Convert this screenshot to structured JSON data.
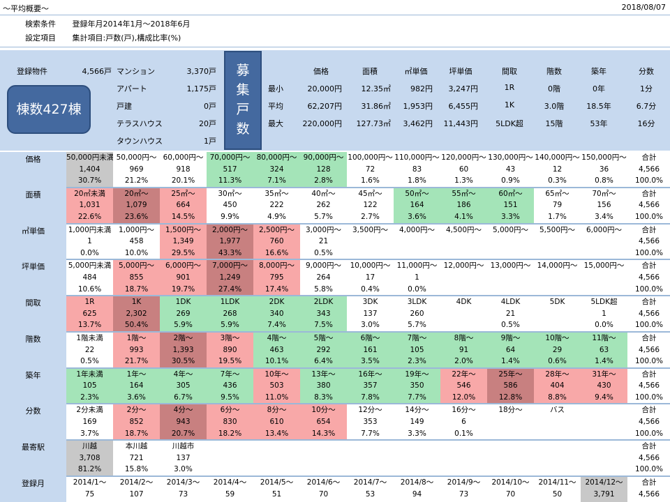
{
  "header": {
    "title": "～平均概要～",
    "date": "2018/08/07"
  },
  "conditions": [
    {
      "key": "検索条件",
      "value": "登録年月2014年1月～2018年6月"
    },
    {
      "key": "設定項目",
      "value": "集計項目:戸数(戸),構成比率(%)"
    }
  ],
  "summary": {
    "registered_label": "登録物件",
    "registered_count": "4,566戸",
    "types": [
      {
        "name": "マンション",
        "count": "3,370戸"
      },
      {
        "name": "アパート",
        "count": "1,175戸"
      },
      {
        "name": "戸建",
        "count": "0戸"
      },
      {
        "name": "テラスハウス",
        "count": "20戸"
      },
      {
        "name": "タウンハウス",
        "count": "1戸"
      }
    ],
    "buildings_button": "棟数427棟",
    "recruit_label": "募集戸数",
    "stat_headers": [
      "価格",
      "面積",
      "㎡単価",
      "坪単価",
      "間取",
      "階数",
      "築年",
      "分数"
    ],
    "stat_rows": [
      {
        "label": "最小",
        "values": [
          "20,000円",
          "12.35㎡",
          "982円",
          "3,247円",
          "1R",
          "0階",
          "0年",
          "1分"
        ]
      },
      {
        "label": "平均",
        "values": [
          "62,207円",
          "31.86㎡",
          "1,953円",
          "6,455円",
          "1K",
          "3.0階",
          "18.5年",
          "6.7分"
        ]
      },
      {
        "label": "最大",
        "values": [
          "220,000円",
          "127.73㎡",
          "3,462円",
          "11,443円",
          "5LDK超",
          "15階",
          "53年",
          "16分"
        ]
      }
    ]
  },
  "total_label": "合計",
  "total_count": "4,566",
  "total_pct": "100.0%",
  "rows": [
    {
      "label": "価格",
      "cells": [
        {
          "h": "50,000円未満",
          "n": "1,404",
          "p": "30.7%",
          "c": "gray"
        },
        {
          "h": "50,000円～",
          "n": "969",
          "p": "21.2%",
          "c": ""
        },
        {
          "h": "60,000円～",
          "n": "918",
          "p": "20.1%",
          "c": ""
        },
        {
          "h": "70,000円～",
          "n": "517",
          "p": "11.3%",
          "c": "green"
        },
        {
          "h": "80,000円～",
          "n": "324",
          "p": "7.1%",
          "c": "green"
        },
        {
          "h": "90,000円～",
          "n": "128",
          "p": "2.8%",
          "c": "green"
        },
        {
          "h": "100,000円～",
          "n": "72",
          "p": "1.6%",
          "c": ""
        },
        {
          "h": "110,000円～",
          "n": "83",
          "p": "1.8%",
          "c": ""
        },
        {
          "h": "120,000円～",
          "n": "60",
          "p": "1.3%",
          "c": ""
        },
        {
          "h": "130,000円～",
          "n": "43",
          "p": "0.9%",
          "c": ""
        },
        {
          "h": "140,000円～",
          "n": "12",
          "p": "0.3%",
          "c": ""
        },
        {
          "h": "150,000円～",
          "n": "36",
          "p": "0.8%",
          "c": ""
        }
      ]
    },
    {
      "label": "面積",
      "cells": [
        {
          "h": "20㎡未満",
          "n": "1,031",
          "p": "22.6%",
          "c": "pink"
        },
        {
          "h": "20㎡～",
          "n": "1,079",
          "p": "23.6%",
          "c": "red"
        },
        {
          "h": "25㎡～",
          "n": "664",
          "p": "14.5%",
          "c": "pink"
        },
        {
          "h": "30㎡～",
          "n": "450",
          "p": "9.9%",
          "c": ""
        },
        {
          "h": "35㎡～",
          "n": "222",
          "p": "4.9%",
          "c": ""
        },
        {
          "h": "40㎡～",
          "n": "262",
          "p": "5.7%",
          "c": ""
        },
        {
          "h": "45㎡～",
          "n": "122",
          "p": "2.7%",
          "c": ""
        },
        {
          "h": "50㎡～",
          "n": "164",
          "p": "3.6%",
          "c": "green"
        },
        {
          "h": "55㎡～",
          "n": "186",
          "p": "4.1%",
          "c": "green"
        },
        {
          "h": "60㎡～",
          "n": "151",
          "p": "3.3%",
          "c": "green"
        },
        {
          "h": "65㎡～",
          "n": "79",
          "p": "1.7%",
          "c": ""
        },
        {
          "h": "70㎡～",
          "n": "156",
          "p": "3.4%",
          "c": ""
        }
      ]
    },
    {
      "label": "㎡単価",
      "cells": [
        {
          "h": "1,000円未満",
          "n": "1",
          "p": "0.0%",
          "c": ""
        },
        {
          "h": "1,000円～",
          "n": "458",
          "p": "10.0%",
          "c": ""
        },
        {
          "h": "1,500円～",
          "n": "1,349",
          "p": "29.5%",
          "c": "pink"
        },
        {
          "h": "2,000円～",
          "n": "1,977",
          "p": "43.3%",
          "c": "red"
        },
        {
          "h": "2,500円～",
          "n": "760",
          "p": "16.6%",
          "c": "pink"
        },
        {
          "h": "3,000円～",
          "n": "21",
          "p": "0.5%",
          "c": ""
        },
        {
          "h": "3,500円～",
          "n": "",
          "p": "",
          "c": ""
        },
        {
          "h": "4,000円～",
          "n": "",
          "p": "",
          "c": ""
        },
        {
          "h": "4,500円～",
          "n": "",
          "p": "",
          "c": ""
        },
        {
          "h": "5,000円～",
          "n": "",
          "p": "",
          "c": ""
        },
        {
          "h": "5,500円～",
          "n": "",
          "p": "",
          "c": ""
        },
        {
          "h": "6,000円～",
          "n": "",
          "p": "",
          "c": ""
        }
      ]
    },
    {
      "label": "坪単価",
      "cells": [
        {
          "h": "5,000円未満",
          "n": "484",
          "p": "10.6%",
          "c": ""
        },
        {
          "h": "5,000円～",
          "n": "855",
          "p": "18.7%",
          "c": "pink"
        },
        {
          "h": "6,000円～",
          "n": "901",
          "p": "19.7%",
          "c": "pink"
        },
        {
          "h": "7,000円～",
          "n": "1,249",
          "p": "27.4%",
          "c": "red"
        },
        {
          "h": "8,000円～",
          "n": "795",
          "p": "17.4%",
          "c": "pink"
        },
        {
          "h": "9,000円～",
          "n": "264",
          "p": "5.8%",
          "c": ""
        },
        {
          "h": "10,000円～",
          "n": "17",
          "p": "0.4%",
          "c": ""
        },
        {
          "h": "11,000円～",
          "n": "1",
          "p": "0.0%",
          "c": ""
        },
        {
          "h": "12,000円～",
          "n": "",
          "p": "",
          "c": ""
        },
        {
          "h": "13,000円～",
          "n": "",
          "p": "",
          "c": ""
        },
        {
          "h": "14,000円～",
          "n": "",
          "p": "",
          "c": ""
        },
        {
          "h": "15,000円～",
          "n": "",
          "p": "",
          "c": ""
        }
      ]
    },
    {
      "label": "間取",
      "cells": [
        {
          "h": "1R",
          "n": "625",
          "p": "13.7%",
          "c": "pink"
        },
        {
          "h": "1K",
          "n": "2,302",
          "p": "50.4%",
          "c": "red"
        },
        {
          "h": "1DK",
          "n": "269",
          "p": "5.9%",
          "c": "green"
        },
        {
          "h": "1LDK",
          "n": "268",
          "p": "5.9%",
          "c": "green"
        },
        {
          "h": "2DK",
          "n": "340",
          "p": "7.4%",
          "c": "green"
        },
        {
          "h": "2LDK",
          "n": "343",
          "p": "7.5%",
          "c": "green"
        },
        {
          "h": "3DK",
          "n": "137",
          "p": "3.0%",
          "c": ""
        },
        {
          "h": "3LDK",
          "n": "260",
          "p": "5.7%",
          "c": ""
        },
        {
          "h": "4DK",
          "n": "",
          "p": "",
          "c": ""
        },
        {
          "h": "4LDK",
          "n": "21",
          "p": "0.5%",
          "c": ""
        },
        {
          "h": "5DK",
          "n": "",
          "p": "",
          "c": ""
        },
        {
          "h": "5LDK超",
          "n": "1",
          "p": "0.0%",
          "c": ""
        }
      ]
    },
    {
      "label": "階数",
      "cells": [
        {
          "h": "1階未満",
          "n": "22",
          "p": "0.5%",
          "c": ""
        },
        {
          "h": "1階～",
          "n": "993",
          "p": "21.7%",
          "c": "pink"
        },
        {
          "h": "2階～",
          "n": "1,393",
          "p": "30.5%",
          "c": "red"
        },
        {
          "h": "3階～",
          "n": "890",
          "p": "19.5%",
          "c": "pink"
        },
        {
          "h": "4階～",
          "n": "463",
          "p": "10.1%",
          "c": "green"
        },
        {
          "h": "5階～",
          "n": "292",
          "p": "6.4%",
          "c": "green"
        },
        {
          "h": "6階～",
          "n": "161",
          "p": "3.5%",
          "c": "green"
        },
        {
          "h": "7階～",
          "n": "105",
          "p": "2.3%",
          "c": "green"
        },
        {
          "h": "8階～",
          "n": "91",
          "p": "2.0%",
          "c": "green"
        },
        {
          "h": "9階～",
          "n": "64",
          "p": "1.4%",
          "c": "green"
        },
        {
          "h": "10階～",
          "n": "29",
          "p": "0.6%",
          "c": "green"
        },
        {
          "h": "11階～",
          "n": "63",
          "p": "1.4%",
          "c": "green"
        }
      ]
    },
    {
      "label": "築年",
      "cells": [
        {
          "h": "1年未満",
          "n": "105",
          "p": "2.3%",
          "c": "green"
        },
        {
          "h": "1年～",
          "n": "164",
          "p": "3.6%",
          "c": "green"
        },
        {
          "h": "4年～",
          "n": "305",
          "p": "6.7%",
          "c": "green"
        },
        {
          "h": "7年～",
          "n": "436",
          "p": "9.5%",
          "c": "green"
        },
        {
          "h": "10年～",
          "n": "503",
          "p": "11.0%",
          "c": "pink"
        },
        {
          "h": "13年～",
          "n": "380",
          "p": "8.3%",
          "c": "green"
        },
        {
          "h": "16年～",
          "n": "357",
          "p": "7.8%",
          "c": "green"
        },
        {
          "h": "19年～",
          "n": "350",
          "p": "7.7%",
          "c": "green"
        },
        {
          "h": "22年～",
          "n": "546",
          "p": "12.0%",
          "c": "pink"
        },
        {
          "h": "25年～",
          "n": "586",
          "p": "12.8%",
          "c": "red"
        },
        {
          "h": "28年～",
          "n": "404",
          "p": "8.8%",
          "c": "pink"
        },
        {
          "h": "31年～",
          "n": "430",
          "p": "9.4%",
          "c": "pink"
        }
      ]
    },
    {
      "label": "分数",
      "cells": [
        {
          "h": "2分未満",
          "n": "169",
          "p": "3.7%",
          "c": ""
        },
        {
          "h": "2分～",
          "n": "852",
          "p": "18.7%",
          "c": "pink"
        },
        {
          "h": "4分～",
          "n": "943",
          "p": "20.7%",
          "c": "red"
        },
        {
          "h": "6分～",
          "n": "830",
          "p": "18.2%",
          "c": "pink"
        },
        {
          "h": "8分～",
          "n": "610",
          "p": "13.4%",
          "c": "pink"
        },
        {
          "h": "10分～",
          "n": "654",
          "p": "14.3%",
          "c": "pink"
        },
        {
          "h": "12分～",
          "n": "353",
          "p": "7.7%",
          "c": ""
        },
        {
          "h": "14分～",
          "n": "149",
          "p": "3.3%",
          "c": ""
        },
        {
          "h": "16分～",
          "n": "6",
          "p": "0.1%",
          "c": ""
        },
        {
          "h": "18分～",
          "n": "",
          "p": "",
          "c": ""
        },
        {
          "h": "バス",
          "n": "",
          "p": "",
          "c": ""
        },
        {
          "h": "",
          "n": "",
          "p": "",
          "c": ""
        }
      ]
    },
    {
      "label": "最寄駅",
      "cells": [
        {
          "h": "川越",
          "n": "3,708",
          "p": "81.2%",
          "c": "gray"
        },
        {
          "h": "本川越",
          "n": "721",
          "p": "15.8%",
          "c": ""
        },
        {
          "h": "川越市",
          "n": "137",
          "p": "3.0%",
          "c": ""
        },
        {
          "h": "",
          "n": "",
          "p": "",
          "c": ""
        },
        {
          "h": "",
          "n": "",
          "p": "",
          "c": ""
        },
        {
          "h": "",
          "n": "",
          "p": "",
          "c": ""
        },
        {
          "h": "",
          "n": "",
          "p": "",
          "c": ""
        },
        {
          "h": "",
          "n": "",
          "p": "",
          "c": ""
        },
        {
          "h": "",
          "n": "",
          "p": "",
          "c": ""
        },
        {
          "h": "",
          "n": "",
          "p": "",
          "c": ""
        },
        {
          "h": "",
          "n": "",
          "p": "",
          "c": ""
        },
        {
          "h": "",
          "n": "",
          "p": "",
          "c": ""
        }
      ]
    },
    {
      "label": "登録月",
      "cells": [
        {
          "h": "2014/1～",
          "n": "75",
          "p": "1.6%",
          "c": ""
        },
        {
          "h": "2014/2～",
          "n": "107",
          "p": "2.3%",
          "c": ""
        },
        {
          "h": "2014/3～",
          "n": "73",
          "p": "1.6%",
          "c": ""
        },
        {
          "h": "2014/4～",
          "n": "59",
          "p": "1.3%",
          "c": ""
        },
        {
          "h": "2014/5～",
          "n": "51",
          "p": "1.1%",
          "c": ""
        },
        {
          "h": "2014/6～",
          "n": "70",
          "p": "1.5%",
          "c": ""
        },
        {
          "h": "2014/7～",
          "n": "53",
          "p": "1.2%",
          "c": ""
        },
        {
          "h": "2014/8～",
          "n": "94",
          "p": "2.1%",
          "c": ""
        },
        {
          "h": "2014/9～",
          "n": "73",
          "p": "1.6%",
          "c": ""
        },
        {
          "h": "2014/10～",
          "n": "70",
          "p": "1.5%",
          "c": ""
        },
        {
          "h": "2014/11～",
          "n": "50",
          "p": "1.1%",
          "c": ""
        },
        {
          "h": "2014/12～",
          "n": "3,791",
          "p": "83.0%",
          "c": "gray"
        }
      ]
    }
  ]
}
